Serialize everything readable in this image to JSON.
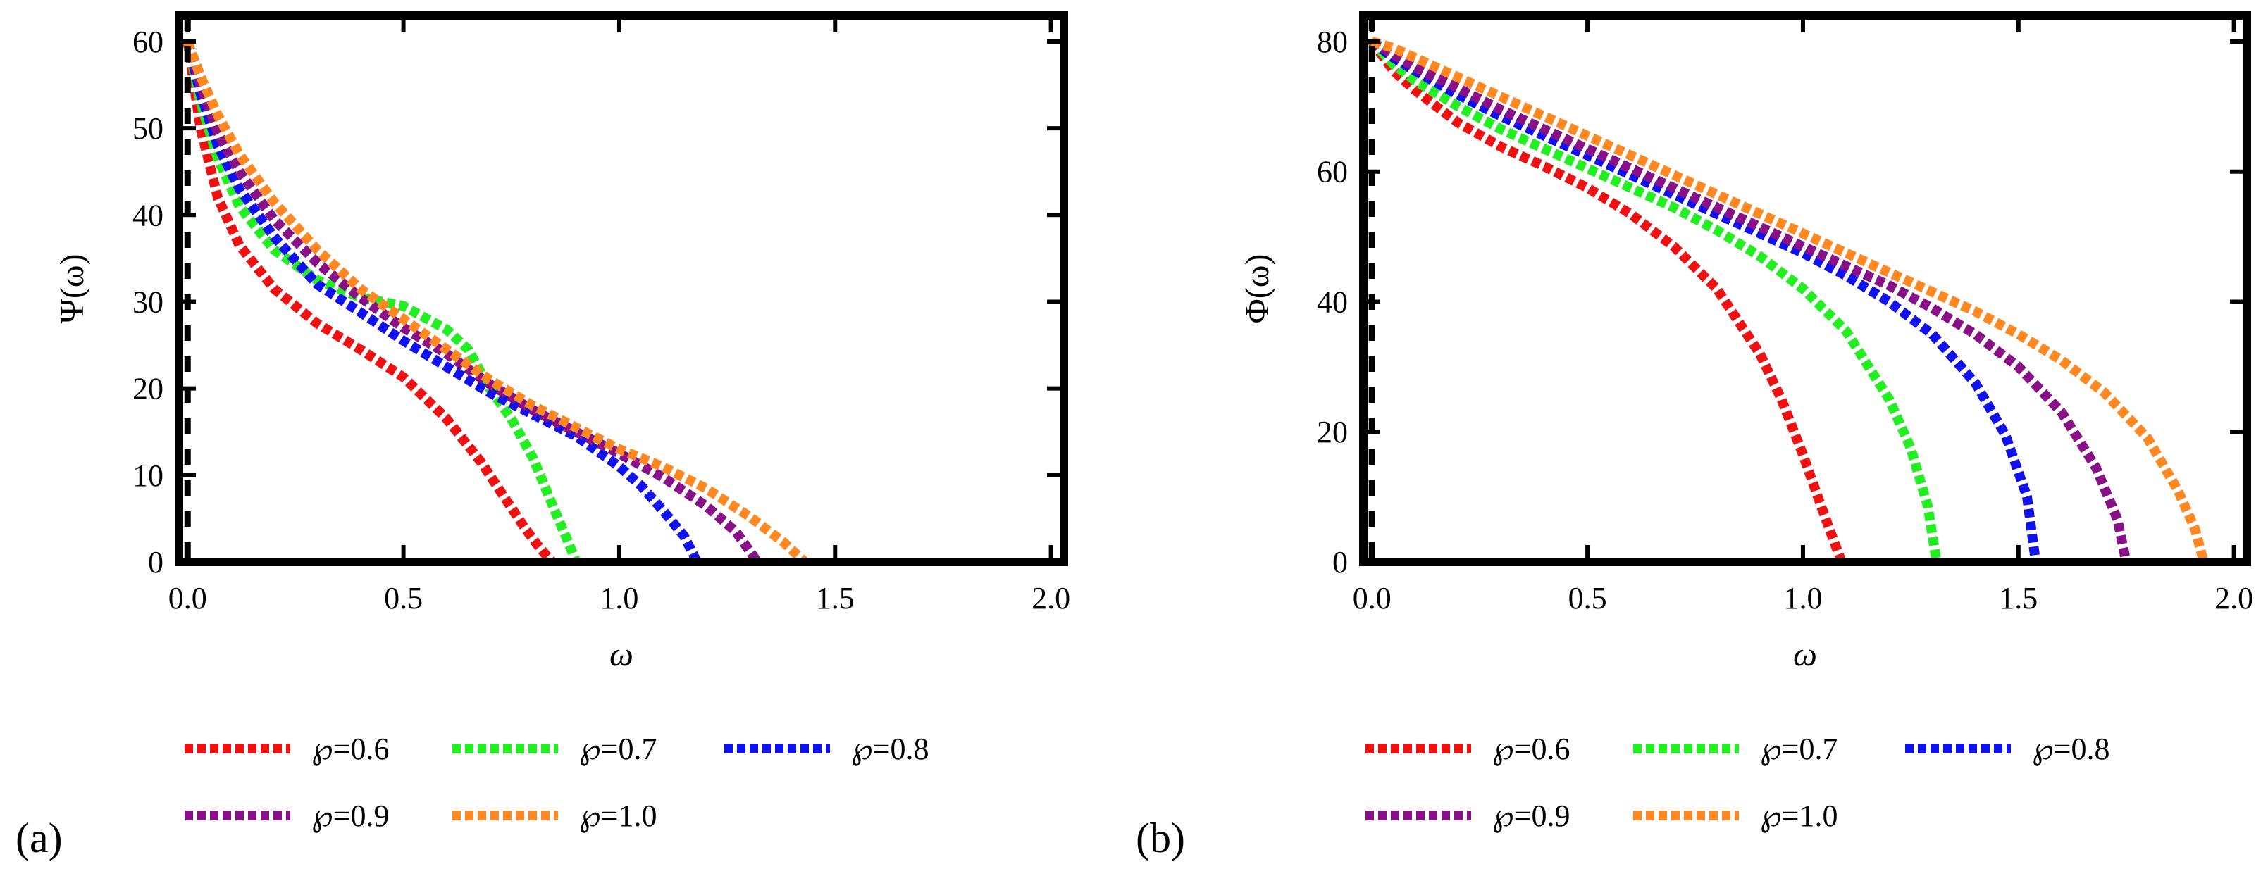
{
  "chart_data": [
    {
      "type": "line",
      "panel_label": "(a)",
      "xlabel": "ω",
      "ylabel": "Ψ(ω)",
      "xlim": [
        -0.02,
        2.03
      ],
      "ylim": [
        0,
        63
      ],
      "xticks": [
        0.0,
        0.5,
        1.0,
        1.5,
        2.0
      ],
      "xtick_labels": [
        "0.0",
        "0.5",
        "1.0",
        "1.5",
        "2.0"
      ],
      "yticks": [
        0,
        10,
        20,
        30,
        40,
        50,
        60
      ],
      "ytick_labels": [
        "0",
        "10",
        "20",
        "30",
        "40",
        "50",
        "60"
      ],
      "line_style": "dashed",
      "legend_position": "bottom",
      "series": [
        {
          "name": "℘=0.6",
          "color": "#ee1111",
          "x": [
            0.0,
            0.03,
            0.07,
            0.12,
            0.2,
            0.3,
            0.4,
            0.5,
            0.6,
            0.68,
            0.74,
            0.78,
            0.81,
            0.83,
            0.845
          ],
          "y": [
            60,
            50,
            42,
            36.5,
            31.5,
            27.5,
            24.5,
            21.3,
            16.5,
            11.5,
            7,
            4,
            2,
            0.8,
            0
          ]
        },
        {
          "name": "℘=0.7",
          "color": "#22ee22",
          "x": [
            0.0,
            0.03,
            0.07,
            0.12,
            0.2,
            0.3,
            0.4,
            0.5,
            0.6,
            0.65,
            0.7,
            0.75,
            0.8,
            0.85,
            0.88,
            0.9
          ],
          "y": [
            60,
            53,
            46.5,
            41,
            36,
            32.5,
            30.5,
            29.5,
            26.8,
            24.5,
            20,
            16.5,
            12,
            6,
            2.5,
            0
          ]
        },
        {
          "name": "℘=0.8",
          "color": "#1111ee",
          "x": [
            0.0,
            0.03,
            0.07,
            0.12,
            0.2,
            0.3,
            0.4,
            0.5,
            0.6,
            0.7,
            0.8,
            0.9,
            1.0,
            1.05,
            1.1,
            1.15,
            1.18
          ],
          "y": [
            60,
            54,
            48,
            43,
            37.5,
            32,
            28.8,
            25.5,
            22.5,
            19.5,
            17,
            14.5,
            11,
            8.8,
            6,
            3,
            0
          ]
        },
        {
          "name": "℘=0.9",
          "color": "#881188",
          "x": [
            0.0,
            0.03,
            0.07,
            0.12,
            0.2,
            0.3,
            0.4,
            0.5,
            0.6,
            0.7,
            0.8,
            0.9,
            1.0,
            1.1,
            1.2,
            1.27,
            1.32
          ],
          "y": [
            60,
            55,
            49.5,
            45,
            39.5,
            34.5,
            30.5,
            27,
            24,
            20.5,
            17.5,
            15,
            12.5,
            9.8,
            6.5,
            3.5,
            0
          ]
        },
        {
          "name": "℘=1.0",
          "color": "#ff8822",
          "x": [
            0.0,
            0.03,
            0.07,
            0.12,
            0.2,
            0.3,
            0.4,
            0.5,
            0.6,
            0.7,
            0.8,
            0.9,
            1.0,
            1.1,
            1.2,
            1.3,
            1.38,
            1.43
          ],
          "y": [
            60,
            56,
            51.5,
            47,
            41.5,
            36,
            31.5,
            28,
            24.5,
            21,
            18,
            15.5,
            13,
            11,
            8.5,
            5.3,
            2.3,
            0
          ]
        }
      ]
    },
    {
      "type": "line",
      "panel_label": "(b)",
      "xlabel": "ω",
      "ylabel": "Φ(ω)",
      "xlim": [
        -0.02,
        2.03
      ],
      "ylim": [
        0,
        84
      ],
      "xticks": [
        0.0,
        0.5,
        1.0,
        1.5,
        2.0
      ],
      "xtick_labels": [
        "0.0",
        "0.5",
        "1.0",
        "1.5",
        "2.0"
      ],
      "yticks": [
        0,
        20,
        40,
        60,
        80
      ],
      "ytick_labels": [
        "0",
        "20",
        "40",
        "60",
        "80"
      ],
      "line_style": "dashed",
      "legend_position": "bottom",
      "series": [
        {
          "name": "℘=0.6",
          "color": "#ee1111",
          "x": [
            0.0,
            0.05,
            0.1,
            0.2,
            0.3,
            0.4,
            0.5,
            0.6,
            0.7,
            0.8,
            0.9,
            0.95,
            1.0,
            1.04,
            1.07,
            1.09
          ],
          "y": [
            80,
            75.5,
            72.5,
            67.5,
            63.8,
            60.8,
            57.5,
            53.5,
            48.5,
            42,
            32,
            25,
            16.5,
            9,
            3.5,
            0
          ]
        },
        {
          "name": "℘=0.7",
          "color": "#22ee22",
          "x": [
            0.0,
            0.05,
            0.1,
            0.2,
            0.3,
            0.4,
            0.5,
            0.6,
            0.7,
            0.8,
            0.9,
            1.0,
            1.1,
            1.2,
            1.25,
            1.29,
            1.31
          ],
          "y": [
            80,
            76.5,
            74,
            70,
            66.5,
            63.5,
            60.5,
            57.5,
            54.5,
            51,
            47,
            42,
            35.5,
            25,
            17.5,
            8.5,
            0
          ]
        },
        {
          "name": "℘=0.8",
          "color": "#1111ee",
          "x": [
            0.0,
            0.05,
            0.1,
            0.2,
            0.3,
            0.4,
            0.5,
            0.6,
            0.7,
            0.8,
            0.9,
            1.0,
            1.1,
            1.2,
            1.3,
            1.4,
            1.47,
            1.52,
            1.54
          ],
          "y": [
            80,
            77.5,
            75.5,
            71.8,
            68.5,
            65.5,
            62.5,
            59.5,
            56.5,
            53.5,
            50.5,
            47.5,
            44,
            40,
            35,
            27.5,
            19.5,
            10,
            0
          ]
        },
        {
          "name": "℘=0.9",
          "color": "#881188",
          "x": [
            0.0,
            0.05,
            0.1,
            0.2,
            0.3,
            0.4,
            0.5,
            0.6,
            0.7,
            0.8,
            0.9,
            1.0,
            1.1,
            1.2,
            1.3,
            1.4,
            1.5,
            1.6,
            1.68,
            1.73,
            1.75
          ],
          "y": [
            80,
            78,
            76,
            72.8,
            69.5,
            66.5,
            63.5,
            60.5,
            57.5,
            54.5,
            51.5,
            48.5,
            45.5,
            42.5,
            39,
            35,
            30,
            23,
            14.5,
            6.5,
            0
          ]
        },
        {
          "name": "℘=1.0",
          "color": "#ff8822",
          "x": [
            0.0,
            0.05,
            0.1,
            0.2,
            0.3,
            0.4,
            0.5,
            0.6,
            0.7,
            0.8,
            0.9,
            1.0,
            1.1,
            1.2,
            1.3,
            1.4,
            1.5,
            1.6,
            1.7,
            1.8,
            1.87,
            1.91,
            1.93
          ],
          "y": [
            80,
            79,
            77.5,
            74.5,
            71.5,
            68.5,
            65.5,
            62.5,
            59.5,
            56.5,
            53.5,
            50.5,
            47.5,
            44.5,
            41.5,
            38.5,
            35,
            31,
            26,
            19,
            11,
            5,
            0
          ]
        }
      ]
    }
  ]
}
